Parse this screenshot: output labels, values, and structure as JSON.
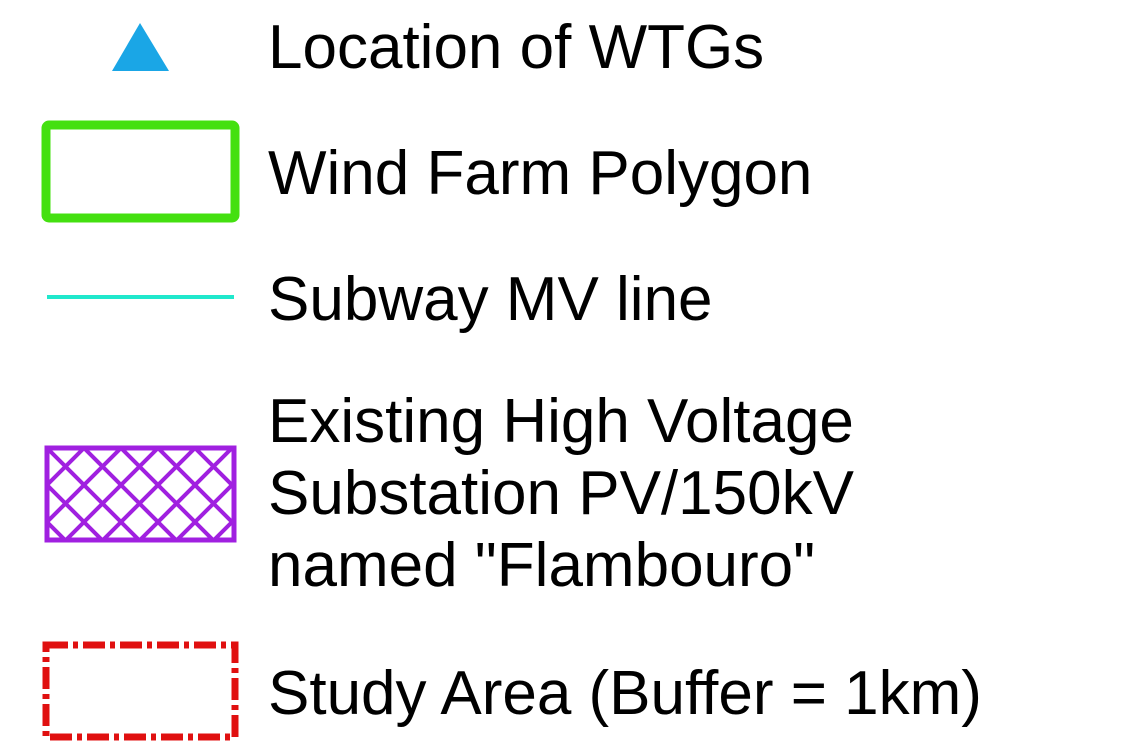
{
  "legend": {
    "items": [
      {
        "label": "Location of WTGs"
      },
      {
        "label": "Wind Farm Polygon"
      },
      {
        "label": "Subway MV line"
      },
      {
        "label": "Existing High Voltage\nSubstation PV/150kV\nnamed \"Flambouro\""
      },
      {
        "label": "Study Area (Buffer = 1km)"
      }
    ]
  }
}
